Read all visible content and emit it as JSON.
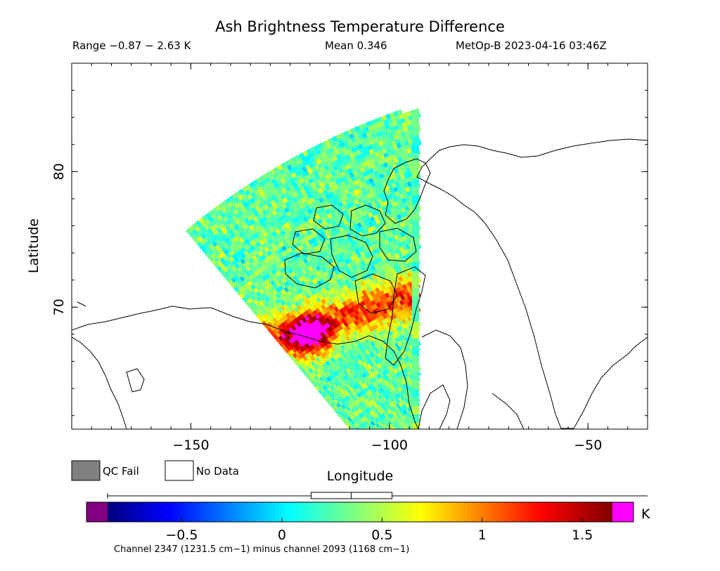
{
  "header": {
    "title": "Ash Brightness Temperature Difference",
    "range": "Range −0.87 − 2.63 K",
    "mean": "Mean 0.346",
    "satellite_time": "MetOp-B 2023-04-16 03:46Z"
  },
  "map": {
    "xlabel": "Longitude",
    "ylabel": "Latitude",
    "lon_range": [
      -180,
      -35
    ],
    "lat_range": [
      61,
      88
    ],
    "lon_ticks": [
      "−150",
      "−100",
      "−50"
    ],
    "lat_ticks": [
      "70",
      "80"
    ],
    "ash_hotspot": "magenta near 118W 69N",
    "coastline_color": "#000000"
  },
  "legend": {
    "qc_fail": "QC Fail",
    "no_data": "No Data",
    "qc_fail_color": "#808080",
    "no_data_color": "#ffffff"
  },
  "colorbar": {
    "unit": "K",
    "ticks": [
      "−0.5",
      "0",
      "0.5",
      "1",
      "1.5"
    ],
    "tick_values": [
      -0.5,
      0,
      0.5,
      1,
      1.5
    ],
    "min": -0.87,
    "max": 1.65,
    "under_color": "#800080",
    "over_color": "#ff00ff",
    "box_min": 0.146,
    "box_mean": 0.346,
    "box_max": 0.55,
    "caption": "Channel 2347 (1231.5 cm−1) minus channel 2093 (1168 cm−1)"
  }
}
